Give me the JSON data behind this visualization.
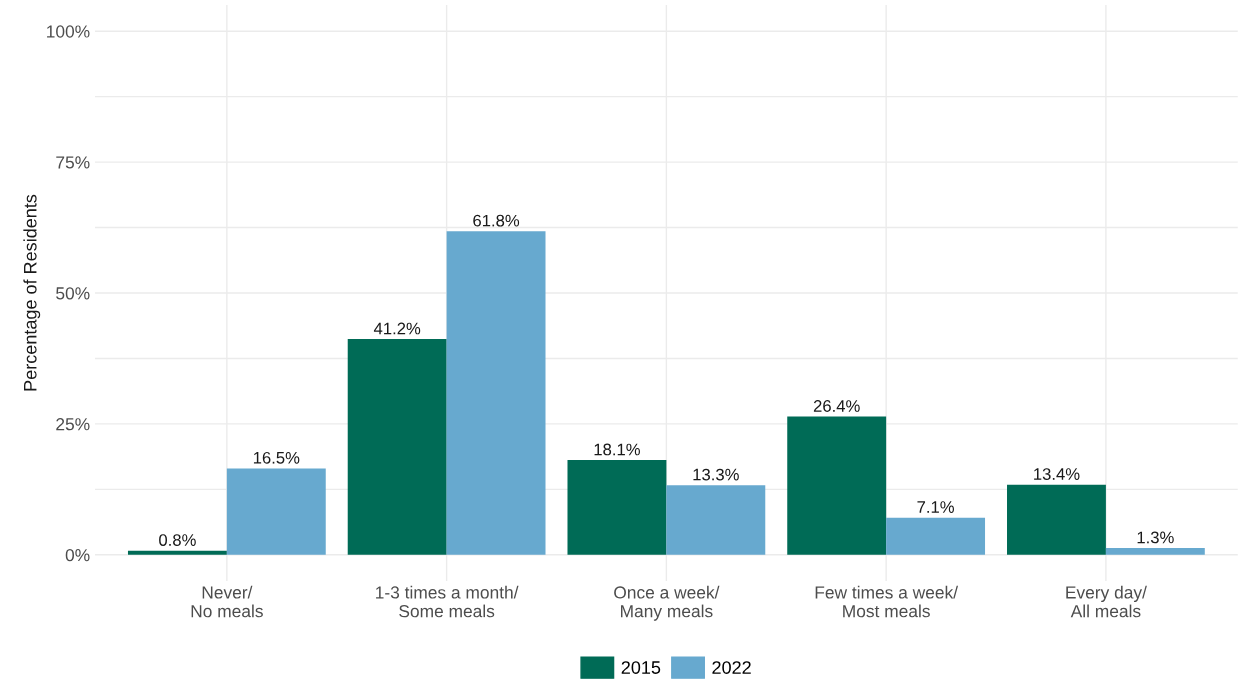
{
  "chart_data": {
    "type": "bar",
    "ylabel": "Percentage of Residents",
    "categories": [
      "Never/\nNo meals",
      "1-3 times a month/\nSome meals",
      "Once a week/\nMany meals",
      "Few times a week/\nMost meals",
      "Every day/\nAll meals"
    ],
    "series": [
      {
        "name": "2015",
        "color": "#006b56",
        "values": [
          0.8,
          41.2,
          18.1,
          26.4,
          13.4
        ],
        "value_labels": [
          "0.8%",
          "41.2%",
          "18.1%",
          "26.4%",
          "13.4%"
        ]
      },
      {
        "name": "2022",
        "color": "#67a9cf",
        "values": [
          16.5,
          61.8,
          13.3,
          7.1,
          1.3
        ],
        "value_labels": [
          "16.5%",
          "61.8%",
          "13.3%",
          "7.1%",
          "1.3%"
        ]
      }
    ],
    "ylim": [
      -5,
      105
    ],
    "yticks": [
      {
        "value": 0,
        "label": "0%"
      },
      {
        "value": 12.5,
        "label": null
      },
      {
        "value": 25,
        "label": "25%"
      },
      {
        "value": 37.5,
        "label": null
      },
      {
        "value": 50,
        "label": "50%"
      },
      {
        "value": 62.5,
        "label": null
      },
      {
        "value": 75,
        "label": "75%"
      },
      {
        "value": 87.5,
        "label": null
      },
      {
        "value": 100,
        "label": "100%"
      }
    ],
    "grid": true,
    "legend": "bottom"
  }
}
